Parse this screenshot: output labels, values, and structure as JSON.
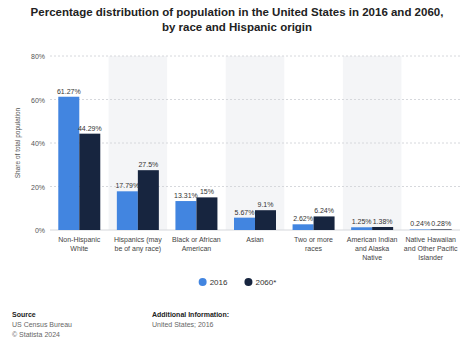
{
  "chart_data": {
    "type": "bar",
    "title": "Percentage distribution of population in the United States in 2016 and 2060, by race and Hispanic origin",
    "y_label": "Share of total population",
    "categories": [
      "Non-Hispanic White",
      "Hispanics (may be of any race)",
      "Black or African American",
      "Asian",
      "Two or more races",
      "American Indian and Alaska Native",
      "Native Hawaiian and Other Pacific Islander"
    ],
    "series": [
      {
        "name": "2016",
        "color": "#4285e0",
        "values": [
          61.27,
          17.79,
          13.31,
          5.67,
          2.62,
          1.25,
          0.24
        ],
        "value_labels": [
          "61.27%",
          "17.79%",
          "13.31%",
          "5.67%",
          "2.62%",
          "1.25%",
          "0.24%"
        ]
      },
      {
        "name": "2060*",
        "color": "#17253f",
        "values": [
          44.29,
          27.5,
          15,
          9.1,
          6.24,
          1.38,
          0.28
        ],
        "value_labels": [
          "44.29%",
          "27.5%",
          "15%",
          "9.1%",
          "6.24%",
          "1.38%",
          "0.28%"
        ]
      }
    ],
    "ylim": [
      0,
      80
    ],
    "yticks": [
      {
        "value": 0,
        "label": "0%"
      },
      {
        "value": 20,
        "label": "20%"
      },
      {
        "value": 40,
        "label": "40%"
      },
      {
        "value": 60,
        "label": "60%"
      },
      {
        "value": 80,
        "label": "80%"
      }
    ],
    "grid": true,
    "legend": "bottom",
    "data_labels": true
  },
  "footer": {
    "source_title": "Source",
    "source": "US Census Bureau",
    "copyright": "© Statista 2024",
    "info_title": "Additional Information:",
    "info": "United States; 2016"
  }
}
